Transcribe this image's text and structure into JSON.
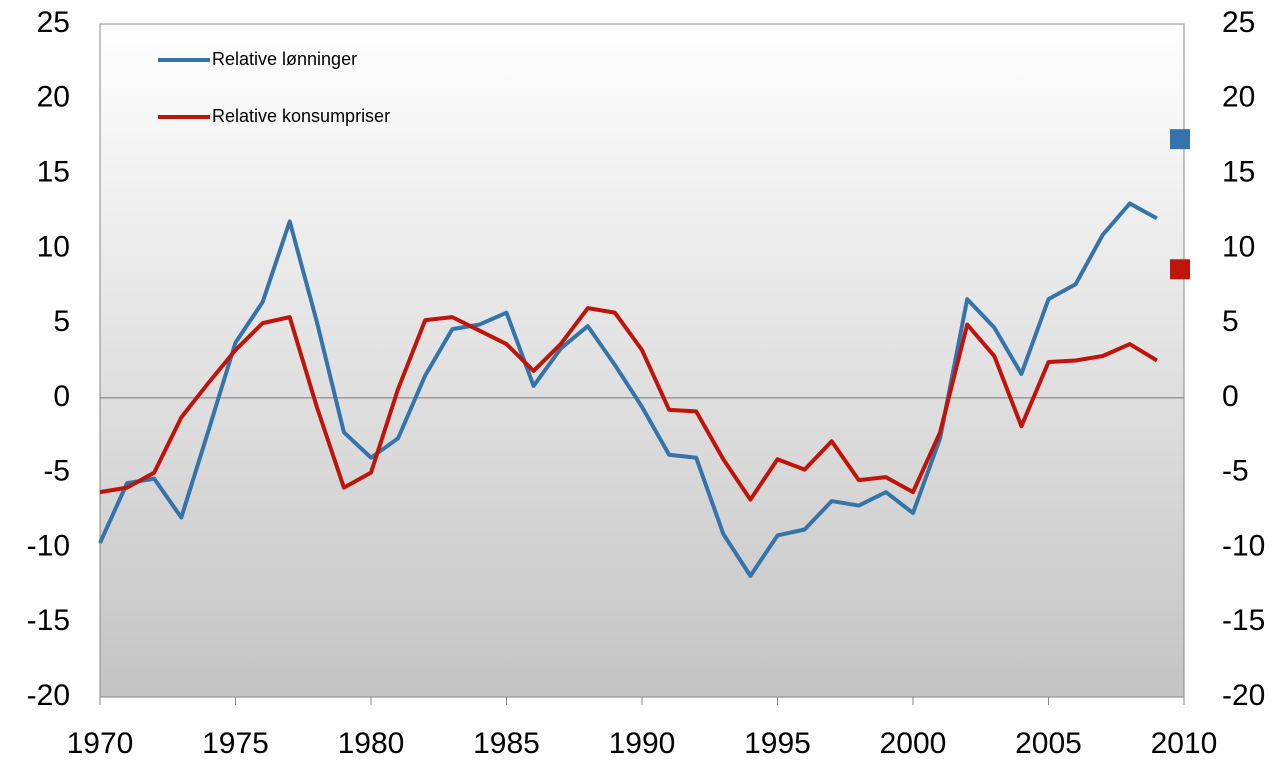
{
  "chart_data": {
    "type": "line",
    "x": [
      1970,
      1971,
      1972,
      1973,
      1974,
      1975,
      1976,
      1977,
      1978,
      1979,
      1980,
      1981,
      1982,
      1983,
      1984,
      1985,
      1986,
      1987,
      1988,
      1989,
      1990,
      1991,
      1992,
      1993,
      1994,
      1995,
      1996,
      1997,
      1998,
      1999,
      2000,
      2001,
      2002,
      2003,
      2004,
      2005,
      2006,
      2007,
      2008,
      2009
    ],
    "series": [
      {
        "name": "Relative lønninger",
        "color": "#3474aa",
        "values": [
          -9.7,
          -5.7,
          -5.4,
          -8.0,
          -2.2,
          3.7,
          6.4,
          11.8,
          5.1,
          -2.3,
          -4.0,
          -2.7,
          1.5,
          4.6,
          4.9,
          5.7,
          0.8,
          3.3,
          4.8,
          2.2,
          -0.6,
          -3.8,
          -4.0,
          -9.1,
          -11.9,
          -9.2,
          -8.8,
          -6.9,
          -7.2,
          -6.3,
          -7.7,
          -2.7,
          6.6,
          4.7,
          1.6,
          6.6,
          7.6,
          10.9,
          13.0,
          12.0
        ],
        "marker": {
          "x": 2010,
          "value": 17.3
        }
      },
      {
        "name": "Relative konsumpriser",
        "color": "#c0140a",
        "values": [
          -6.3,
          -6.0,
          -5.0,
          -1.3,
          1.0,
          3.2,
          5.0,
          5.4,
          -0.6,
          -6.0,
          -5.0,
          0.6,
          5.2,
          5.4,
          4.5,
          3.6,
          1.8,
          3.6,
          6.0,
          5.7,
          3.2,
          -0.8,
          -0.9,
          -4.1,
          -6.8,
          -4.1,
          -4.8,
          -2.9,
          -5.5,
          -5.3,
          -6.3,
          -2.3,
          4.9,
          2.8,
          -1.9,
          2.4,
          2.5,
          2.8,
          3.6,
          2.5
        ],
        "marker": {
          "x": 2010,
          "value": 8.6
        }
      }
    ],
    "xlim": [
      1970,
      2010
    ],
    "xticks": [
      1970,
      1975,
      1980,
      1985,
      1990,
      1995,
      2000,
      2005,
      2010
    ],
    "ylim": [
      -20,
      25
    ],
    "yticks": [
      -20,
      -15,
      -10,
      -5,
      0,
      5,
      10,
      15,
      20,
      25
    ],
    "y2lim": [
      -20,
      25
    ],
    "y2ticks": [
      -20,
      -15,
      -10,
      -5,
      0,
      5,
      10,
      15,
      20,
      25
    ],
    "legend": "upper-left"
  }
}
